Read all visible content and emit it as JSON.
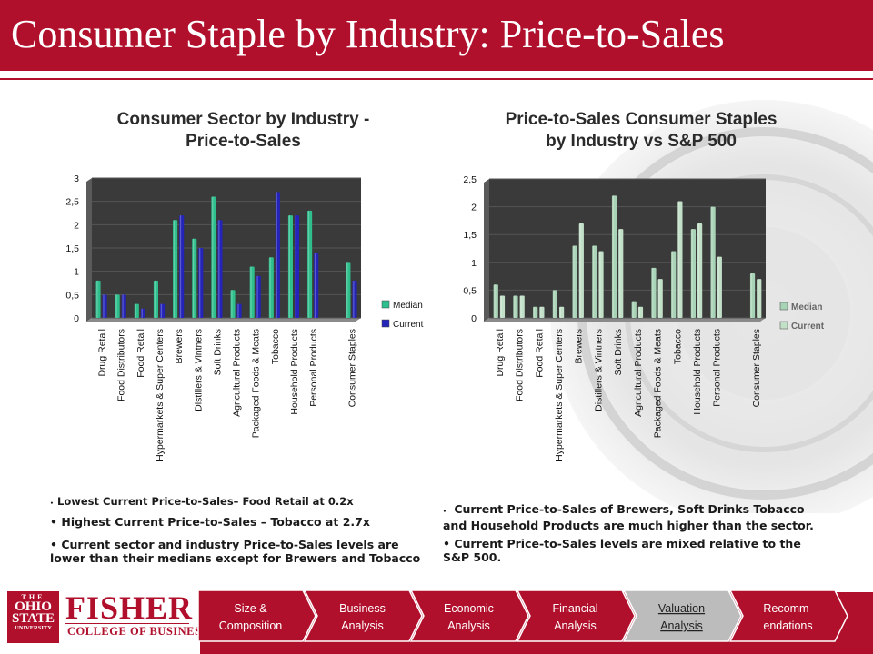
{
  "page_title": "Consumer Staple by Industry: Price-to-Sales",
  "chart_data": [
    {
      "type": "bar",
      "title": "Consumer  Sector by Industry - Price-to-Sales",
      "title_lines": [
        "Consumer  Sector by Industry -",
        "Price-to-Sales"
      ],
      "categories": [
        "Drug Retail",
        "Food Distributors",
        "Food Retail",
        "Hypermarkets & Super Centers",
        "Brewers",
        "Distillers & Vintners",
        "Soft Drinks",
        "Agricultural Products",
        "Packaged Foods & Meats",
        "Tobacco",
        "Household Products",
        "Personal Products",
        "",
        "Consumer Staples"
      ],
      "series": [
        {
          "name": "Median",
          "values": [
            0.8,
            0.5,
            0.3,
            0.8,
            2.1,
            1.7,
            2.6,
            0.6,
            1.1,
            1.3,
            2.2,
            2.3,
            null,
            1.2
          ],
          "color": "#2fbf8c"
        },
        {
          "name": "Current",
          "values": [
            0.5,
            0.5,
            0.2,
            0.3,
            2.2,
            1.5,
            2.1,
            0.3,
            0.9,
            2.7,
            2.2,
            1.4,
            null,
            0.8
          ],
          "color": "#2424b8"
        }
      ],
      "ylim": [
        0,
        3
      ],
      "yticks": [
        "0",
        "0,5",
        "1",
        "1,5",
        "2",
        "2,5",
        "3"
      ],
      "legend": "right"
    },
    {
      "type": "bar",
      "title": "Price-to-Sales Consumer Staples by Industry vs S&P 500",
      "title_lines": [
        "Price-to-Sales Consumer Staples",
        "by Industry vs S&P 500"
      ],
      "categories": [
        "Drug Retail",
        "Food Distributors",
        "Food Retail",
        "Hypermarkets & Super Centers",
        "Brewers",
        "Distillers & Vintners",
        "Soft Drinks",
        "Agricultural Products",
        "Packaged Foods & Meats",
        "Tobacco",
        "Household Products",
        "Personal Products",
        "",
        "Consumer Staples"
      ],
      "series": [
        {
          "name": "Median",
          "values": [
            0.6,
            0.4,
            0.2,
            0.5,
            1.3,
            1.3,
            2.2,
            0.3,
            0.9,
            1.2,
            1.6,
            2.0,
            null,
            0.8
          ],
          "color": "#a9d3b6"
        },
        {
          "name": "Current",
          "values": [
            0.4,
            0.4,
            0.2,
            0.2,
            1.7,
            1.2,
            1.6,
            0.2,
            0.7,
            2.1,
            1.7,
            1.1,
            null,
            0.7
          ],
          "color": "#c2e0c8"
        }
      ],
      "ylim": [
        0,
        2.5
      ],
      "yticks": [
        "0",
        "0,5",
        "1",
        "1,5",
        "2",
        "2,5"
      ],
      "legend": "right"
    }
  ],
  "bullets_left": [
    "Lowest Current Price-to-Sales– Food Retail at  0.2x",
    "Highest Current Price-to-Sales – Tobacco at 2.7x",
    "Current sector and industry Price-to-Sales levels are lower than their medians except for Brewers and Tobacco"
  ],
  "bullets_right": [
    "Current Price-to-Sales of Brewers, Soft Drinks Tobacco and Household Products are much higher than the sector.",
    "Current Price-to-Sales levels are mixed relative to the S&P 500."
  ],
  "logo": {
    "seal_lines": [
      "THE",
      "OHIO",
      "STATE",
      "UNIVERSITY"
    ],
    "name": "FISHER",
    "subtitle": "COLLEGE OF BUSINESS"
  },
  "nav_steps": [
    {
      "label_lines": [
        "Size &",
        "Composition"
      ],
      "active": false
    },
    {
      "label_lines": [
        "Business",
        "Analysis"
      ],
      "active": false
    },
    {
      "label_lines": [
        "Economic",
        "Analysis"
      ],
      "active": false
    },
    {
      "label_lines": [
        "Financial",
        "Analysis"
      ],
      "active": false
    },
    {
      "label_lines": [
        "Valuation",
        "Analysis"
      ],
      "active": true
    },
    {
      "label_lines": [
        "Recomm-",
        "endations"
      ],
      "active": false
    }
  ],
  "colors": {
    "brand": "#b0102c",
    "plot_bg": "#3a3a3a",
    "active_step": "#bcbcbc"
  }
}
